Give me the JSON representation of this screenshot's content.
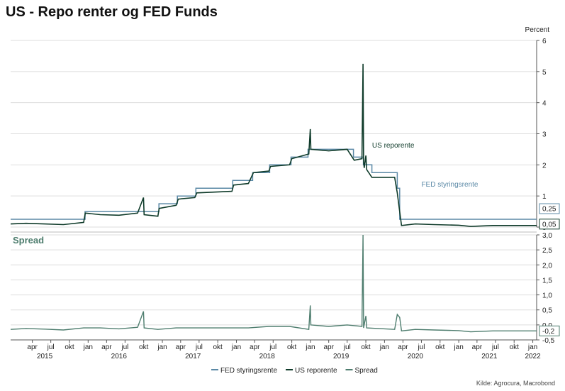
{
  "title": "US - Repo renter og FED Funds",
  "source": "Kilde: Agrocura, Macrobond",
  "colors": {
    "fed": "#5b89a6",
    "repo": "#0f3b2a",
    "spread": "#4e7d6e",
    "grid": "#dddddd"
  },
  "chart_data": [
    {
      "type": "line",
      "panel": "upper",
      "ylabel": "Percent",
      "ylim": [
        0,
        6
      ],
      "yticks": [
        0,
        1,
        2,
        3,
        4,
        5,
        6
      ],
      "grid": true,
      "series": [
        {
          "name": "FED styringsrente",
          "key": "fed",
          "points": [
            [
              "2014-12-15",
              0.25
            ],
            [
              "2015-12-17",
              0.5
            ],
            [
              "2016-12-15",
              0.75
            ],
            [
              "2017-03-16",
              1.0
            ],
            [
              "2017-06-15",
              1.25
            ],
            [
              "2017-12-14",
              1.5
            ],
            [
              "2018-03-22",
              1.75
            ],
            [
              "2018-06-14",
              2.0
            ],
            [
              "2018-09-27",
              2.25
            ],
            [
              "2018-12-20",
              2.5
            ],
            [
              "2019-08-01",
              2.25
            ],
            [
              "2019-09-19",
              2.0
            ],
            [
              "2019-10-31",
              1.75
            ],
            [
              "2020-03-04",
              1.25
            ],
            [
              "2020-03-16",
              0.25
            ],
            [
              "2022-01-20",
              0.25
            ]
          ]
        },
        {
          "name": "US reporente",
          "key": "repo",
          "points": [
            [
              "2014-12-15",
              0.1
            ],
            [
              "2015-03-01",
              0.12
            ],
            [
              "2015-06-01",
              0.1
            ],
            [
              "2015-09-01",
              0.08
            ],
            [
              "2015-12-10",
              0.15
            ],
            [
              "2015-12-18",
              0.45
            ],
            [
              "2016-03-01",
              0.4
            ],
            [
              "2016-06-01",
              0.38
            ],
            [
              "2016-09-01",
              0.45
            ],
            [
              "2016-09-30",
              0.95
            ],
            [
              "2016-10-03",
              0.4
            ],
            [
              "2016-12-10",
              0.35
            ],
            [
              "2016-12-16",
              0.6
            ],
            [
              "2017-03-10",
              0.7
            ],
            [
              "2017-03-20",
              0.9
            ],
            [
              "2017-06-10",
              0.95
            ],
            [
              "2017-06-20",
              1.1
            ],
            [
              "2017-12-10",
              1.15
            ],
            [
              "2017-12-18",
              1.35
            ],
            [
              "2018-03-01",
              1.4
            ],
            [
              "2018-03-26",
              1.75
            ],
            [
              "2018-06-10",
              1.8
            ],
            [
              "2018-06-18",
              1.95
            ],
            [
              "2018-09-20",
              2.0
            ],
            [
              "2018-10-01",
              2.2
            ],
            [
              "2018-12-24",
              2.35
            ],
            [
              "2018-12-31",
              3.15
            ],
            [
              "2019-01-03",
              2.5
            ],
            [
              "2019-04-01",
              2.45
            ],
            [
              "2019-07-01",
              2.5
            ],
            [
              "2019-08-05",
              2.15
            ],
            [
              "2019-09-12",
              2.2
            ],
            [
              "2019-09-17",
              5.25
            ],
            [
              "2019-09-20",
              2.1
            ],
            [
              "2019-09-23",
              1.9
            ],
            [
              "2019-10-01",
              2.3
            ],
            [
              "2019-10-05",
              1.85
            ],
            [
              "2019-10-31",
              1.6
            ],
            [
              "2020-02-20",
              1.6
            ],
            [
              "2020-03-04",
              1.1
            ],
            [
              "2020-03-16",
              0.5
            ],
            [
              "2020-03-25",
              0.05
            ],
            [
              "2020-06-01",
              0.1
            ],
            [
              "2020-09-01",
              0.08
            ],
            [
              "2021-01-01",
              0.06
            ],
            [
              "2021-03-01",
              0.02
            ],
            [
              "2021-06-17",
              0.05
            ],
            [
              "2022-01-20",
              0.05
            ]
          ]
        }
      ],
      "annotations": [
        {
          "text": "US reporente",
          "x": "2019-11-01",
          "y": 2.55,
          "series": "repo"
        },
        {
          "text": "FED styringsrente",
          "x": "2020-07-01",
          "y": 1.3,
          "series": "fed"
        }
      ],
      "end_labels": [
        {
          "text": "0,25",
          "value": 0.25,
          "series": "fed"
        },
        {
          "text": "0,05",
          "value": 0.05,
          "series": "repo"
        }
      ]
    },
    {
      "type": "line",
      "panel": "lower",
      "title": "Spread",
      "ylim": [
        -0.5,
        3.0
      ],
      "yticks": [
        -0.5,
        0,
        0.5,
        1.0,
        1.5,
        2.0,
        2.5,
        3.0
      ],
      "ytick_labels": [
        "-0,5",
        "0,0",
        "0,5",
        "1,0",
        "1,5",
        "2,0",
        "2,5",
        "3,0"
      ],
      "grid": true,
      "series": [
        {
          "name": "Spread",
          "key": "spread",
          "points": [
            [
              "2014-12-15",
              -0.15
            ],
            [
              "2015-03-01",
              -0.12
            ],
            [
              "2015-06-01",
              -0.14
            ],
            [
              "2015-09-01",
              -0.17
            ],
            [
              "2015-12-10",
              -0.1
            ],
            [
              "2016-03-01",
              -0.1
            ],
            [
              "2016-06-01",
              -0.13
            ],
            [
              "2016-09-01",
              -0.08
            ],
            [
              "2016-09-30",
              0.45
            ],
            [
              "2016-10-03",
              -0.1
            ],
            [
              "2016-12-10",
              -0.15
            ],
            [
              "2017-03-10",
              -0.1
            ],
            [
              "2017-06-10",
              -0.1
            ],
            [
              "2017-12-10",
              -0.1
            ],
            [
              "2018-03-01",
              -0.1
            ],
            [
              "2018-06-10",
              -0.05
            ],
            [
              "2018-09-20",
              -0.05
            ],
            [
              "2018-12-24",
              -0.15
            ],
            [
              "2018-12-31",
              0.65
            ],
            [
              "2019-01-03",
              0.0
            ],
            [
              "2019-04-01",
              -0.05
            ],
            [
              "2019-07-01",
              0.0
            ],
            [
              "2019-09-12",
              -0.05
            ],
            [
              "2019-09-17",
              3.0
            ],
            [
              "2019-09-20",
              -0.1
            ],
            [
              "2019-10-01",
              0.3
            ],
            [
              "2019-10-05",
              -0.1
            ],
            [
              "2020-02-20",
              -0.15
            ],
            [
              "2020-03-04",
              0.35
            ],
            [
              "2020-03-16",
              0.25
            ],
            [
              "2020-03-25",
              -0.2
            ],
            [
              "2020-06-01",
              -0.15
            ],
            [
              "2020-09-01",
              -0.17
            ],
            [
              "2021-01-01",
              -0.19
            ],
            [
              "2021-03-01",
              -0.23
            ],
            [
              "2021-06-17",
              -0.2
            ],
            [
              "2022-01-20",
              -0.2
            ]
          ]
        }
      ],
      "end_labels": [
        {
          "text": "-0,2",
          "value": -0.2,
          "series": "spread"
        }
      ]
    }
  ],
  "x_axis": {
    "range": [
      "2014-12-15",
      "2022-01-20"
    ],
    "month_ticks": [
      {
        "date": "2015-04-01",
        "label": "apr"
      },
      {
        "date": "2015-07-01",
        "label": "jul"
      },
      {
        "date": "2015-10-01",
        "label": "okt"
      },
      {
        "date": "2016-01-01",
        "label": "jan"
      },
      {
        "date": "2016-04-01",
        "label": "apr"
      },
      {
        "date": "2016-07-01",
        "label": "jul"
      },
      {
        "date": "2016-10-01",
        "label": "okt"
      },
      {
        "date": "2017-01-01",
        "label": "jan"
      },
      {
        "date": "2017-04-01",
        "label": "apr"
      },
      {
        "date": "2017-07-01",
        "label": "jul"
      },
      {
        "date": "2017-10-01",
        "label": "okt"
      },
      {
        "date": "2018-01-01",
        "label": "jan"
      },
      {
        "date": "2018-04-01",
        "label": "apr"
      },
      {
        "date": "2018-07-01",
        "label": "jul"
      },
      {
        "date": "2018-10-01",
        "label": "okt"
      },
      {
        "date": "2019-01-01",
        "label": "jan"
      },
      {
        "date": "2019-04-01",
        "label": "apr"
      },
      {
        "date": "2019-07-01",
        "label": "jul"
      },
      {
        "date": "2019-10-01",
        "label": "okt"
      },
      {
        "date": "2020-01-01",
        "label": "jan"
      },
      {
        "date": "2020-04-01",
        "label": "apr"
      },
      {
        "date": "2020-07-01",
        "label": "jul"
      },
      {
        "date": "2020-10-01",
        "label": "okt"
      },
      {
        "date": "2021-01-01",
        "label": "jan"
      },
      {
        "date": "2021-04-01",
        "label": "apr"
      },
      {
        "date": "2021-07-01",
        "label": "jul"
      },
      {
        "date": "2021-10-01",
        "label": "okt"
      },
      {
        "date": "2022-01-01",
        "label": "jan"
      }
    ],
    "year_labels": [
      {
        "date": "2015-06-01",
        "label": "2015"
      },
      {
        "date": "2016-06-01",
        "label": "2016"
      },
      {
        "date": "2017-06-01",
        "label": "2017"
      },
      {
        "date": "2018-06-01",
        "label": "2018"
      },
      {
        "date": "2019-06-01",
        "label": "2019"
      },
      {
        "date": "2020-06-01",
        "label": "2020"
      },
      {
        "date": "2021-06-01",
        "label": "2021"
      },
      {
        "date": "2022-01-01",
        "label": "2022"
      }
    ]
  },
  "legend": {
    "placement": "bottom-center",
    "items": [
      {
        "label": "FED styringsrente",
        "key": "fed"
      },
      {
        "label": "US reporente",
        "key": "repo"
      },
      {
        "label": "Spread",
        "key": "spread"
      }
    ]
  }
}
